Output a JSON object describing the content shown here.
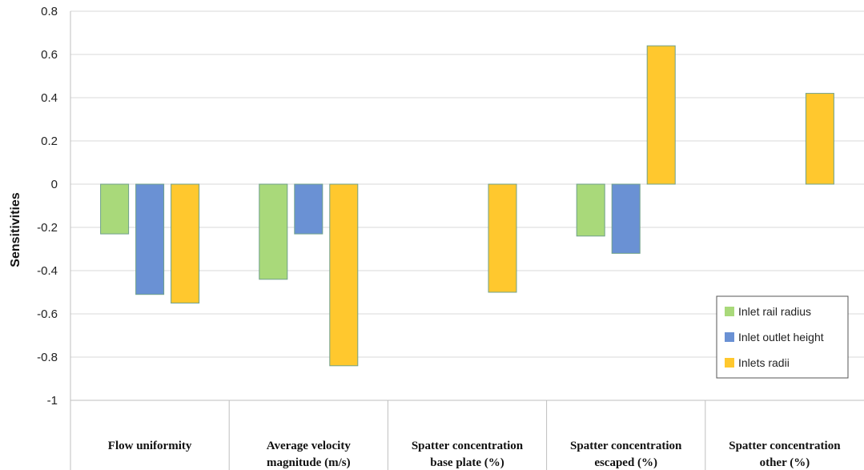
{
  "chart_data": {
    "type": "bar",
    "ylabel": "Sensitivities",
    "xlabel": "",
    "ylim": [
      -1,
      0.8
    ],
    "yticks": [
      0.8,
      0.6,
      0.4,
      0.2,
      0,
      -0.2,
      -0.4,
      -0.6,
      -0.8,
      -1
    ],
    "ytick_labels": [
      "0.8",
      "0.6",
      "0.4",
      "0.2",
      "0",
      "-0.2",
      "-0.4",
      "-0.6",
      "-0.8",
      "-1"
    ],
    "grid": true,
    "legend_position": "bottom-right",
    "categories": [
      [
        "Flow uniformity"
      ],
      [
        "Average velocity",
        "magnitude (m/s)"
      ],
      [
        "Spatter concentration",
        "base plate (%)"
      ],
      [
        "Spatter concentration",
        "escaped (%)"
      ],
      [
        "Spatter concentration",
        "other (%)"
      ]
    ],
    "series": [
      {
        "name": "Inlet rail radius",
        "color": "#a9d97a",
        "values": [
          -0.23,
          -0.44,
          0,
          -0.24,
          0
        ]
      },
      {
        "name": "Inlet outlet height",
        "color": "#6a91d4",
        "values": [
          -0.51,
          -0.23,
          0,
          -0.32,
          0
        ]
      },
      {
        "name": "Inlets radii",
        "color": "#ffc82e",
        "values": [
          -0.55,
          -0.84,
          -0.5,
          0.64,
          0.42
        ]
      }
    ]
  }
}
